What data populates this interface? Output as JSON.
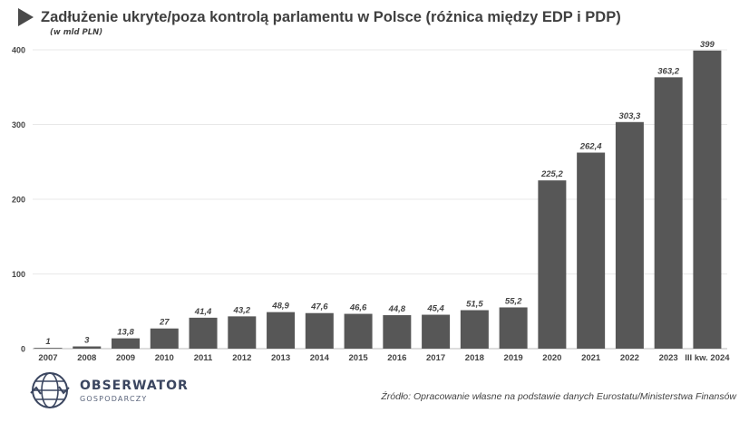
{
  "chart_data": {
    "type": "bar",
    "title": "Zadłużenie ukryte/poza kontrolą parlamentu w Polsce (różnica między EDP i PDP)",
    "subtitle": "(w mld PLN)",
    "categories": [
      "2007",
      "2008",
      "2009",
      "2010",
      "2011",
      "2012",
      "2013",
      "2014",
      "2015",
      "2016",
      "2017",
      "2018",
      "2019",
      "2020",
      "2021",
      "2022",
      "2023",
      "III kw. 2024"
    ],
    "values": [
      1,
      3,
      13.8,
      27,
      41.4,
      43.2,
      48.9,
      47.6,
      46.6,
      44.8,
      45.4,
      51.5,
      55.2,
      225.2,
      262.4,
      303.3,
      363.2,
      399
    ],
    "data_labels": [
      "1",
      "3",
      "13,8",
      "27",
      "41,4",
      "43,2",
      "48,9",
      "47,6",
      "46,6",
      "44,8",
      "45,4",
      "51,5",
      "55,2",
      "225,2",
      "262,4",
      "303,3",
      "363,2",
      "399"
    ],
    "yticks": [
      0,
      100,
      200,
      300,
      400
    ],
    "ylim": [
      0,
      400
    ],
    "xlabel": "",
    "ylabel": "",
    "grid": true,
    "bar_color": "#575757"
  },
  "logo": {
    "name": "OBSERWATOR",
    "sub": "GOSPODARCZY"
  },
  "source": "Źródło: Opracowanie własne na podstawie danych Eurostatu/Ministerstwa Finansów"
}
